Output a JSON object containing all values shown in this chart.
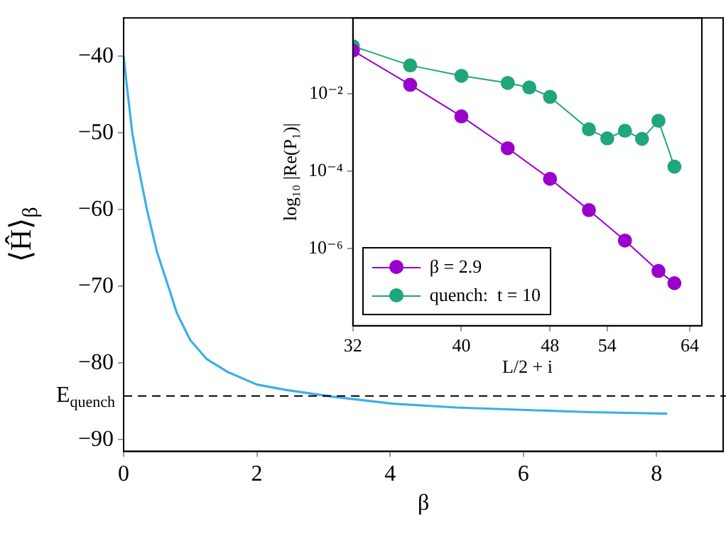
{
  "chart_data": [
    {
      "type": "line",
      "xlabel": "β",
      "ylabel": "⟨Ĥ⟩$_{β}$",
      "xlim": [
        0,
        9
      ],
      "xticks": [
        0,
        2,
        4,
        6,
        8
      ],
      "ylim": [
        -91.5,
        -35
      ],
      "yticks": [
        {
          "value": -90,
          "label": "−90"
        },
        {
          "value": -80,
          "label": "−80"
        },
        {
          "value": -70,
          "label": "−70"
        },
        {
          "value": -60,
          "label": "−60"
        },
        {
          "value": -50,
          "label": "−50"
        },
        {
          "value": -40,
          "label": "−40"
        }
      ],
      "grid": false,
      "marker": "none",
      "series": [
        {
          "color": "#3daee9",
          "x": [
            0,
            0.05,
            0.13,
            0.2,
            0.35,
            0.5,
            0.67,
            0.8,
            1.0,
            1.25,
            1.57,
            2.0,
            2.43,
            3.15,
            4.04,
            5.0,
            5.98,
            7.0,
            8.16
          ],
          "values": [
            -40,
            -44,
            -50,
            -53.5,
            -60,
            -65.5,
            -70,
            -73.5,
            -77,
            -79.5,
            -81.2,
            -82.8,
            -83.5,
            -84.4,
            -85.3,
            -85.8,
            -86.1,
            -86.4,
            -86.6
          ]
        }
      ],
      "ref_lines": [
        {
          "axis": "y",
          "value": -84.3,
          "label": "E$_{quench}$",
          "color": "#000000",
          "line_style": "dashed"
        }
      ]
    },
    {
      "type": "line",
      "xlabel": "L/2 + i",
      "ylabel": "log₁₀ |Re(P₁)|",
      "log": "xy",
      "xlim": [
        32,
        65.6
      ],
      "xticks": [
        32,
        40,
        48,
        54,
        64
      ],
      "ylim": [
        1e-08,
        0.9
      ],
      "yticks": [
        {
          "value": 0.01,
          "label": "10⁻²"
        },
        {
          "value": 0.0001,
          "label": "10⁻⁴"
        },
        {
          "value": 1e-06,
          "label": "10⁻⁶"
        }
      ],
      "grid": false,
      "marker": "circle",
      "legend": "bottom left",
      "series": [
        {
          "name": "β = 2.9",
          "color": "#9900cc",
          "x": [
            32,
            36,
            40,
            44,
            48,
            52,
            56,
            60,
            62
          ],
          "values": [
            0.13,
            0.017,
            0.0026,
            0.00039,
            6.3e-05,
            9.8e-06,
            1.6e-06,
            2.6e-07,
            1.26e-07
          ]
        },
        {
          "name": "quench:  t = 10",
          "color": "#1fa67a",
          "x": [
            32,
            36,
            40,
            44,
            46,
            48,
            52,
            54,
            56,
            58,
            60,
            62
          ],
          "values": [
            0.17,
            0.054,
            0.029,
            0.019,
            0.0145,
            0.0083,
            0.0012,
            0.0007,
            0.0011,
            0.00068,
            0.002,
            0.00013
          ]
        }
      ]
    }
  ]
}
